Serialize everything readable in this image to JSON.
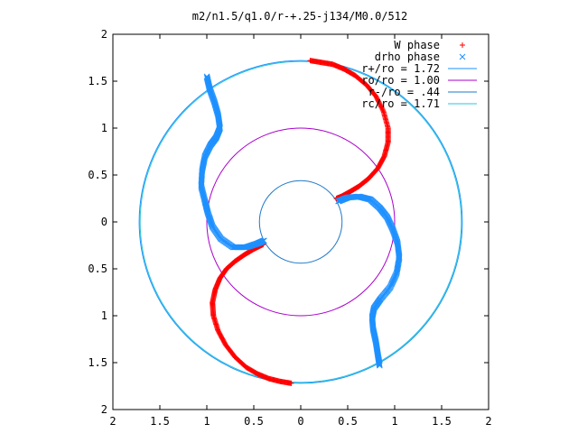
{
  "chart_data": {
    "type": "scatter",
    "title": "m2/n1.5/q1.0/r-+.25-j134/M0.0/512",
    "xlim": [
      -2,
      2
    ],
    "ylim": [
      -2,
      2
    ],
    "x_ticks": [
      -2,
      -1.5,
      -1,
      -0.5,
      0,
      0.5,
      1,
      1.5,
      2
    ],
    "y_ticks": [
      -2,
      -1.5,
      -1,
      -0.5,
      0,
      0.5,
      1,
      1.5,
      2
    ],
    "x_tick_labels": [
      "2",
      "1.5",
      "1",
      "0.5",
      "0",
      "0.5",
      "1",
      "1.5",
      "2"
    ],
    "y_tick_labels": [
      "2",
      "1.5",
      "1",
      "0.5",
      "0",
      "0.5",
      "1",
      "1.5",
      "2"
    ],
    "grid": false,
    "legend_position": "top-right",
    "series": [
      {
        "name": "W phase",
        "marker": "plus",
        "color": "#ff0000",
        "curves": [
          [
            [
              0.1,
              1.72
            ],
            [
              0.22,
              1.7
            ],
            [
              0.34,
              1.68
            ],
            [
              0.46,
              1.63
            ],
            [
              0.58,
              1.56
            ],
            [
              0.7,
              1.46
            ],
            [
              0.8,
              1.34
            ],
            [
              0.88,
              1.18
            ],
            [
              0.93,
              1.0
            ],
            [
              0.93,
              0.85
            ],
            [
              0.89,
              0.7
            ],
            [
              0.82,
              0.57
            ],
            [
              0.72,
              0.46
            ],
            [
              0.62,
              0.38
            ],
            [
              0.52,
              0.32
            ],
            [
              0.43,
              0.27
            ],
            [
              0.38,
              0.25
            ]
          ],
          [
            [
              -0.4,
              -0.24
            ],
            [
              -0.5,
              -0.29
            ],
            [
              -0.6,
              -0.35
            ],
            [
              -0.7,
              -0.42
            ],
            [
              -0.79,
              -0.5
            ],
            [
              -0.86,
              -0.6
            ],
            [
              -0.91,
              -0.72
            ],
            [
              -0.94,
              -0.86
            ],
            [
              -0.93,
              -1.0
            ],
            [
              -0.88,
              -1.16
            ],
            [
              -0.8,
              -1.31
            ],
            [
              -0.7,
              -1.44
            ],
            [
              -0.58,
              -1.55
            ],
            [
              -0.46,
              -1.62
            ],
            [
              -0.34,
              -1.67
            ],
            [
              -0.22,
              -1.7
            ],
            [
              -0.1,
              -1.72
            ]
          ]
        ]
      },
      {
        "name": "drho phase",
        "marker": "cross",
        "color": "#1e90ff",
        "curves": [
          [
            [
              -1.0,
              1.55
            ],
            [
              -0.97,
              1.42
            ],
            [
              -0.92,
              1.28
            ],
            [
              -0.88,
              1.14
            ],
            [
              -0.86,
              1.0
            ],
            [
              -0.9,
              0.9
            ],
            [
              -0.96,
              0.82
            ],
            [
              -1.02,
              0.7
            ],
            [
              -1.05,
              0.55
            ],
            [
              -1.06,
              0.38
            ],
            [
              -1.02,
              0.22
            ],
            [
              -0.99,
              0.1
            ],
            [
              -0.94,
              -0.05
            ],
            [
              -0.85,
              -0.18
            ],
            [
              -0.72,
              -0.27
            ],
            [
              -0.58,
              -0.27
            ],
            [
              -0.46,
              -0.23
            ],
            [
              -0.39,
              -0.2
            ]
          ],
          [
            [
              0.4,
              0.22
            ],
            [
              0.5,
              0.26
            ],
            [
              0.62,
              0.27
            ],
            [
              0.74,
              0.24
            ],
            [
              0.84,
              0.15
            ],
            [
              0.92,
              0.05
            ],
            [
              0.98,
              -0.08
            ],
            [
              1.03,
              -0.22
            ],
            [
              1.05,
              -0.38
            ],
            [
              1.02,
              -0.55
            ],
            [
              0.95,
              -0.7
            ],
            [
              0.85,
              -0.82
            ],
            [
              0.78,
              -0.92
            ],
            [
              0.76,
              -1.02
            ],
            [
              0.77,
              -1.14
            ],
            [
              0.8,
              -1.28
            ],
            [
              0.82,
              -1.41
            ],
            [
              0.84,
              -1.53
            ]
          ]
        ]
      },
      {
        "name": "r+/ro = 1.72",
        "type": "circle",
        "radius": 1.72,
        "color": "#1e90ff"
      },
      {
        "name": "ro/ro = 1.00",
        "type": "circle",
        "radius": 1.0,
        "color": "#aa00cc"
      },
      {
        "name": "r-/ro = .44",
        "type": "circle",
        "radius": 0.44,
        "color": "#1e78c8"
      },
      {
        "name": "rc/ro = 1.71",
        "type": "circle",
        "radius": 1.71,
        "color": "#28c4dc"
      }
    ]
  }
}
